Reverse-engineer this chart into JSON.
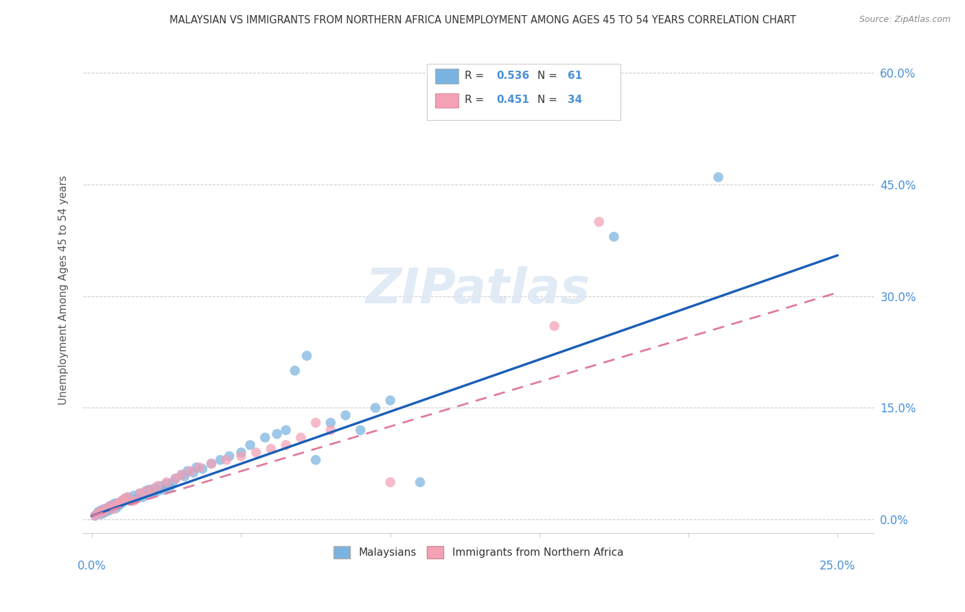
{
  "title": "MALAYSIAN VS IMMIGRANTS FROM NORTHERN AFRICA UNEMPLOYMENT AMONG AGES 45 TO 54 YEARS CORRELATION CHART",
  "source": "Source: ZipAtlas.com",
  "ylabel": "Unemployment Among Ages 45 to 54 years",
  "right_ytick_labels": [
    "0.0%",
    "15.0%",
    "30.0%",
    "45.0%",
    "60.0%"
  ],
  "right_ytick_vals": [
    0.0,
    0.15,
    0.3,
    0.45,
    0.6
  ],
  "xlim": [
    -0.003,
    0.262
  ],
  "ylim": [
    -0.018,
    0.635
  ],
  "malaysian_color": "#7ab3e0",
  "immigrant_color": "#f4a0b5",
  "trend_blue": "#1a5eb8",
  "trend_pink": "#e07a9a",
  "R_malaysian": 0.536,
  "N_malaysian": 61,
  "R_immigrant": 0.451,
  "N_immigrant": 34,
  "legend_label_1": "Malaysians",
  "legend_label_2": "Immigrants from Northern Africa",
  "watermark": "ZIPatlas",
  "malaysian_x": [
    0.001,
    0.002,
    0.002,
    0.003,
    0.003,
    0.004,
    0.004,
    0.005,
    0.005,
    0.006,
    0.006,
    0.007,
    0.007,
    0.008,
    0.008,
    0.009,
    0.01,
    0.01,
    0.011,
    0.012,
    0.013,
    0.014,
    0.015,
    0.016,
    0.017,
    0.018,
    0.019,
    0.02,
    0.021,
    0.022,
    0.023,
    0.024,
    0.025,
    0.026,
    0.027,
    0.028,
    0.03,
    0.031,
    0.032,
    0.034,
    0.035,
    0.037,
    0.04,
    0.043,
    0.046,
    0.05,
    0.053,
    0.058,
    0.062,
    0.065,
    0.068,
    0.072,
    0.075,
    0.08,
    0.085,
    0.09,
    0.095,
    0.1,
    0.11,
    0.175,
    0.21
  ],
  "malaysian_y": [
    0.005,
    0.008,
    0.01,
    0.007,
    0.012,
    0.009,
    0.014,
    0.011,
    0.015,
    0.013,
    0.018,
    0.016,
    0.02,
    0.015,
    0.022,
    0.019,
    0.025,
    0.022,
    0.028,
    0.03,
    0.025,
    0.032,
    0.028,
    0.035,
    0.03,
    0.038,
    0.04,
    0.035,
    0.042,
    0.038,
    0.045,
    0.04,
    0.048,
    0.043,
    0.05,
    0.055,
    0.06,
    0.058,
    0.065,
    0.063,
    0.07,
    0.068,
    0.075,
    0.08,
    0.085,
    0.09,
    0.1,
    0.11,
    0.115,
    0.12,
    0.2,
    0.22,
    0.08,
    0.13,
    0.14,
    0.12,
    0.15,
    0.16,
    0.05,
    0.38,
    0.46
  ],
  "immigrant_x": [
    0.001,
    0.002,
    0.003,
    0.004,
    0.005,
    0.006,
    0.007,
    0.008,
    0.009,
    0.01,
    0.011,
    0.012,
    0.014,
    0.016,
    0.018,
    0.02,
    0.022,
    0.025,
    0.028,
    0.03,
    0.033,
    0.036,
    0.04,
    0.045,
    0.05,
    0.055,
    0.06,
    0.065,
    0.07,
    0.075,
    0.08,
    0.1,
    0.155,
    0.17
  ],
  "immigrant_y": [
    0.005,
    0.008,
    0.012,
    0.01,
    0.015,
    0.018,
    0.014,
    0.02,
    0.022,
    0.025,
    0.028,
    0.03,
    0.025,
    0.035,
    0.038,
    0.04,
    0.045,
    0.05,
    0.055,
    0.06,
    0.065,
    0.07,
    0.075,
    0.08,
    0.085,
    0.09,
    0.095,
    0.1,
    0.11,
    0.13,
    0.12,
    0.05,
    0.26,
    0.4
  ],
  "trend_m_x0": 0.0,
  "trend_m_y0": 0.005,
  "trend_m_x1": 0.25,
  "trend_m_y1": 0.355,
  "trend_i_x0": 0.0,
  "trend_i_y0": 0.005,
  "trend_i_x1": 0.25,
  "trend_i_y1": 0.305
}
